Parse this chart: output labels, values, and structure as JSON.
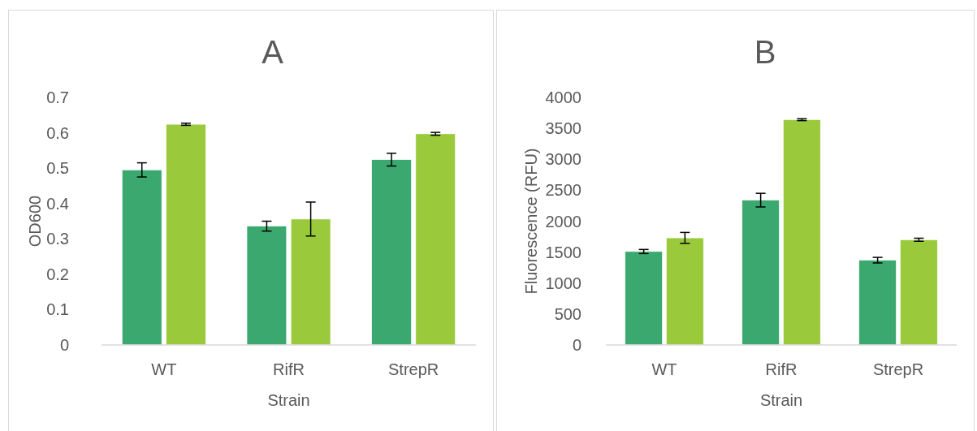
{
  "chart_data": [
    {
      "type": "bar",
      "title": "A",
      "xlabel": "Strain",
      "ylabel": "OD600",
      "categories": [
        "WT",
        "RifR",
        "StrepR"
      ],
      "ylim": [
        0,
        0.7
      ],
      "yticks": [
        0,
        0.1,
        0.2,
        0.3,
        0.4,
        0.5,
        0.6,
        0.7
      ],
      "grid": false,
      "series": [
        {
          "color": "#3aa86f",
          "values": [
            0.495,
            0.336,
            0.524
          ],
          "errors": [
            0.02,
            0.014,
            0.018
          ]
        },
        {
          "color": "#9aca3c",
          "values": [
            0.624,
            0.356,
            0.597
          ],
          "errors": [
            0.003,
            0.048,
            0.004
          ]
        }
      ]
    },
    {
      "type": "bar",
      "title": "B",
      "xlabel": "Strain",
      "ylabel": "Fluorescence (RFU)",
      "categories": [
        "WT",
        "RifR",
        "StrepR"
      ],
      "ylim": [
        0,
        4000
      ],
      "yticks": [
        0,
        500,
        1000,
        1500,
        2000,
        2500,
        3000,
        3500,
        4000
      ],
      "grid": false,
      "series": [
        {
          "color": "#3aa86f",
          "values": [
            1510,
            2340,
            1370
          ],
          "errors": [
            33,
            110,
            45
          ]
        },
        {
          "color": "#9aca3c",
          "values": [
            1730,
            3640,
            1700
          ],
          "errors": [
            88,
            15,
            25
          ]
        }
      ]
    }
  ]
}
